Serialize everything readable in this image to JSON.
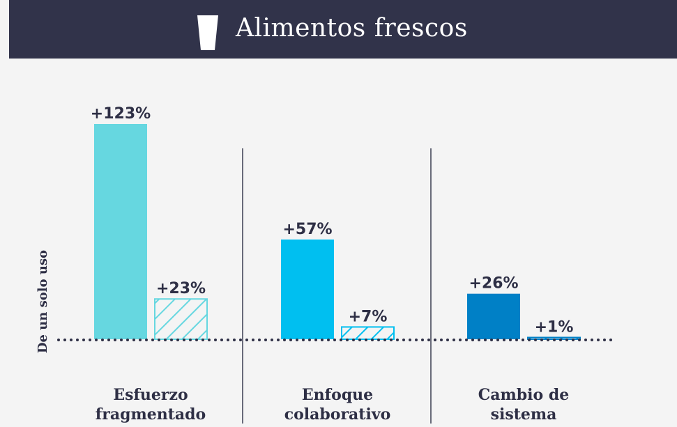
{
  "chart_data": {
    "type": "bar",
    "title": "Alimentos frescos",
    "ylabel": "De un solo uso",
    "categories": [
      "Esfuerzo fragmentado",
      "Enfoque colaborativo",
      "Cambio de sistema"
    ],
    "category_colors": [
      "#66d7e0",
      "#00bff0",
      "#0080c6"
    ],
    "series": [
      {
        "values": [
          123,
          57,
          26
        ],
        "value_labels": [
          "+123%",
          "+57%",
          "+26%"
        ],
        "pattern": "solid"
      },
      {
        "values": [
          23,
          7,
          1
        ],
        "value_labels": [
          "+23%",
          "+7%",
          "+1%"
        ],
        "pattern": "hatch"
      }
    ],
    "ylim": [
      0,
      130
    ]
  }
}
